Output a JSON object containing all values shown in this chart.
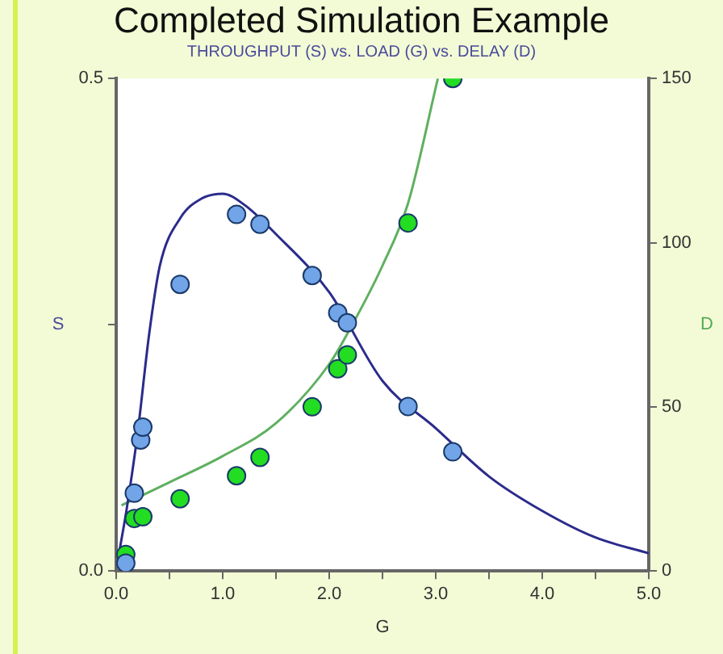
{
  "chart_data": {
    "type": "scatter",
    "title": "Completed Simulation Example",
    "subtitle": "THROUGHPUT (S) vs. LOAD (G) vs. DELAY (D)",
    "xlabel": "G",
    "ylabel": "S",
    "y2label": "D",
    "xlim": [
      0,
      5
    ],
    "xticks": [
      {
        "value": 0,
        "label": "0.0"
      },
      {
        "value": 0.5,
        "label": null
      },
      {
        "value": 1,
        "label": "1.0"
      },
      {
        "value": 1.5,
        "label": null
      },
      {
        "value": 2,
        "label": "2.0"
      },
      {
        "value": 2.5,
        "label": null
      },
      {
        "value": 3,
        "label": "3.0"
      },
      {
        "value": 3.5,
        "label": null
      },
      {
        "value": 4,
        "label": "4.0"
      },
      {
        "value": 4.5,
        "label": null
      },
      {
        "value": 5,
        "label": "5.0"
      }
    ],
    "ylim": [
      0,
      0.5
    ],
    "yticks": [
      {
        "value": 0,
        "label": "0.0"
      },
      {
        "value": 0.25,
        "label": null
      },
      0.5
    ],
    "y2lim": [
      0,
      150
    ],
    "y2ticks": [
      0,
      50,
      100,
      150
    ],
    "grid": false,
    "legend": false,
    "series": [
      {
        "type": "line",
        "marker": "none",
        "color": "#2b2b8c",
        "x": [
          0.03,
          0.1,
          0.2,
          0.31,
          0.41,
          0.6,
          0.8,
          1.0,
          1.2,
          1.5,
          2.0,
          2.5,
          3.0,
          3.5,
          4.0,
          4.5,
          5.0
        ],
        "values": [
          0.02,
          0.064,
          0.139,
          0.241,
          0.31,
          0.358,
          0.378,
          0.383,
          0.372,
          0.342,
          0.283,
          0.193,
          0.145,
          0.096,
          0.061,
          0.034,
          0.018
        ]
      },
      {
        "type": "line",
        "marker": "none",
        "axis": "y2",
        "color": "#5fb060",
        "x": [
          0.05,
          0.5,
          1.0,
          1.5,
          2.0,
          2.2,
          2.5,
          2.74,
          3.02
        ],
        "values": [
          20,
          27,
          35,
          45,
          63,
          74,
          93,
          112,
          150
        ]
      },
      {
        "type": "scatter",
        "marker": "circle",
        "color": "#72a4e8",
        "x": [
          0.09,
          0.17,
          0.23,
          0.25,
          0.6,
          1.13,
          1.35,
          1.84,
          2.08,
          2.17,
          2.74,
          3.16
        ],
        "values": [
          0.008,
          0.079,
          0.133,
          0.146,
          0.291,
          0.362,
          0.352,
          0.3,
          0.262,
          0.252,
          0.167,
          0.121
        ]
      },
      {
        "type": "scatter",
        "marker": "circle",
        "axis": "y2",
        "color": "#22dd22",
        "x": [
          0.09,
          0.17,
          0.25,
          0.6,
          1.13,
          1.35,
          1.84,
          2.08,
          2.17,
          2.74,
          3.16
        ],
        "values": [
          5,
          16,
          16.5,
          22,
          29,
          34.6,
          50,
          61.6,
          65.8,
          106,
          150
        ]
      }
    ]
  }
}
